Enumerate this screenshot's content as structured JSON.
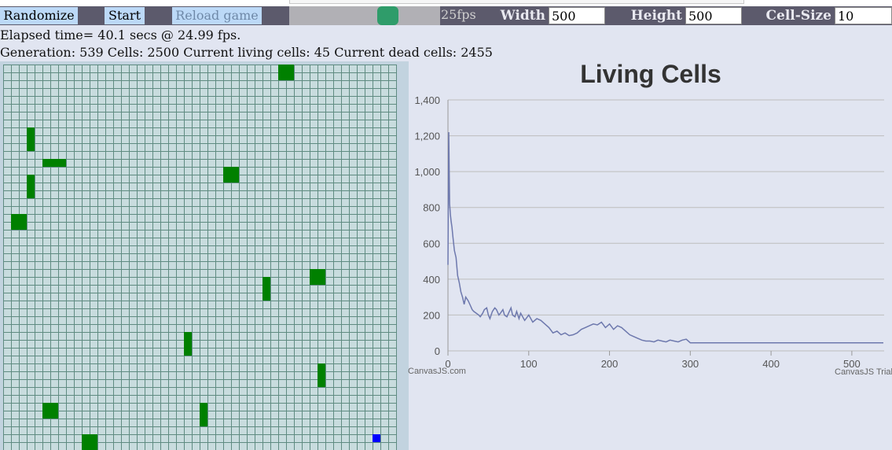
{
  "toolbar": {
    "randomize_label": "Randomize",
    "start_label": "Start",
    "reload_label": "Reload game",
    "fps_label": "25fps",
    "width_label": "Width",
    "width_value": "500",
    "height_label": "Height",
    "height_value": "500",
    "cellsize_label": "Cell-Size",
    "cellsize_value": "10",
    "speed_slider_fraction": 0.68
  },
  "stats": {
    "elapsed": "Elapsed time= 40.1 secs @ 24.99 fps.",
    "generation": "Generation: 539 Cells: 2500 Current living cells: 45 Current dead cells: 2455"
  },
  "grid": {
    "columns": 50,
    "rows": 50,
    "cell_color": "#008000",
    "marker_color": "#0000ff",
    "living_cells": [
      [
        35,
        0
      ],
      [
        36,
        0
      ],
      [
        35,
        1
      ],
      [
        36,
        1
      ],
      [
        3,
        8
      ],
      [
        3,
        9
      ],
      [
        3,
        10
      ],
      [
        5,
        12
      ],
      [
        6,
        12
      ],
      [
        7,
        12
      ],
      [
        28,
        13
      ],
      [
        29,
        13
      ],
      [
        28,
        14
      ],
      [
        29,
        14
      ],
      [
        3,
        14
      ],
      [
        3,
        15
      ],
      [
        3,
        16
      ],
      [
        1,
        19
      ],
      [
        2,
        19
      ],
      [
        1,
        20
      ],
      [
        2,
        20
      ],
      [
        39,
        26
      ],
      [
        40,
        26
      ],
      [
        39,
        27
      ],
      [
        40,
        27
      ],
      [
        33,
        27
      ],
      [
        33,
        28
      ],
      [
        33,
        29
      ],
      [
        23,
        34
      ],
      [
        23,
        35
      ],
      [
        23,
        36
      ],
      [
        40,
        38
      ],
      [
        40,
        39
      ],
      [
        40,
        40
      ],
      [
        5,
        43
      ],
      [
        6,
        43
      ],
      [
        5,
        44
      ],
      [
        6,
        44
      ],
      [
        25,
        43
      ],
      [
        25,
        44
      ],
      [
        25,
        45
      ],
      [
        10,
        47
      ],
      [
        11,
        47
      ],
      [
        10,
        48
      ],
      [
        11,
        48
      ]
    ],
    "marker_cells": [
      [
        47,
        47
      ]
    ]
  },
  "chart_data": {
    "type": "line",
    "title": "Living Cells",
    "xlim": [
      0,
      540
    ],
    "ylim": [
      0,
      1400
    ],
    "x_ticks": [
      0,
      100,
      200,
      300,
      400,
      500
    ],
    "y_ticks": [
      0,
      200,
      400,
      600,
      800,
      1000,
      1200,
      1400
    ],
    "x_tick_labels": [
      "0",
      "100",
      "200",
      "300",
      "400",
      "500"
    ],
    "y_tick_labels": [
      "0",
      "200",
      "400",
      "600",
      "800",
      "1,000",
      "1,200",
      "1,400"
    ],
    "grid": "horizontal",
    "line_color": "#6d78ad",
    "credit_left": "CanvasJS.com",
    "credit_right": "CanvasJS Trial",
    "series": [
      {
        "x": [
          0,
          1,
          2,
          3,
          4,
          5,
          6,
          8,
          10,
          12,
          14,
          16,
          18,
          20,
          22,
          25,
          28,
          30,
          32,
          35,
          38,
          40,
          43,
          45,
          48,
          50,
          52,
          55,
          58,
          60,
          63,
          65,
          68,
          70,
          73,
          75,
          78,
          80,
          83,
          85,
          88,
          90,
          95,
          100,
          105,
          110,
          115,
          120,
          125,
          130,
          135,
          140,
          145,
          150,
          155,
          160,
          165,
          170,
          175,
          180,
          185,
          190,
          195,
          200,
          205,
          210,
          215,
          220,
          225,
          230,
          235,
          240,
          245,
          250,
          255,
          260,
          265,
          270,
          275,
          280,
          285,
          290,
          295,
          300,
          310,
          320,
          340,
          400,
          450,
          500,
          539
        ],
        "y": [
          480,
          1220,
          820,
          760,
          720,
          690,
          640,
          560,
          520,
          420,
          380,
          330,
          300,
          260,
          300,
          280,
          250,
          230,
          220,
          210,
          200,
          190,
          210,
          230,
          240,
          200,
          180,
          220,
          240,
          230,
          200,
          210,
          230,
          200,
          190,
          210,
          240,
          200,
          190,
          220,
          180,
          210,
          170,
          200,
          160,
          180,
          170,
          150,
          130,
          100,
          110,
          90,
          100,
          85,
          90,
          100,
          120,
          130,
          140,
          150,
          145,
          160,
          130,
          150,
          120,
          140,
          130,
          110,
          90,
          80,
          70,
          60,
          55,
          55,
          50,
          60,
          55,
          50,
          60,
          55,
          50,
          60,
          65,
          45,
          45,
          45,
          45,
          45,
          45,
          45,
          45
        ]
      }
    ]
  }
}
